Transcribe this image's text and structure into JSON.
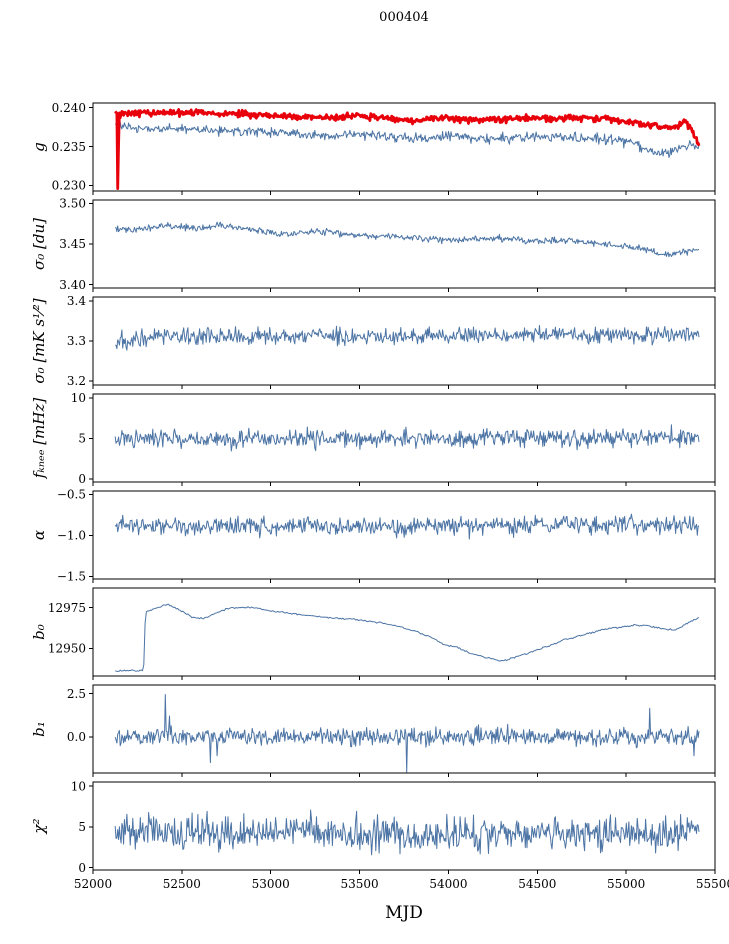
{
  "title": "000404",
  "colors": {
    "line_blue": "#4c74a4",
    "line_red": "#e8000b",
    "axis": "#000000",
    "background": "#ffffff"
  },
  "chart_data": {
    "type": "line",
    "title": "000404",
    "xlabel": "MJD",
    "x_range": [
      52000,
      55500
    ],
    "x_ticks": [
      52000,
      52500,
      53000,
      53500,
      54000,
      54500,
      55000,
      55500
    ],
    "x_tick_labels": [
      "52000",
      "52500",
      "53000",
      "53500",
      "54000",
      "54500",
      "55000",
      "55500"
    ],
    "x_data_range": [
      52125,
      55410
    ],
    "legend": "none",
    "grid": false,
    "subplots": [
      {
        "key": "g",
        "ylabel": "g",
        "ylim": [
          0.2293,
          0.2406
        ],
        "yticks": [
          0.23,
          0.235,
          0.24
        ],
        "ytick_labels": [
          "0.230",
          "0.235",
          "0.240"
        ],
        "series": [
          {
            "name": "g-blue",
            "color": "#4c74a4",
            "width": 1,
            "points": 700,
            "noise": 0.0006,
            "trend": [
              [
                52125,
                0.2379
              ],
              [
                52250,
                0.2373
              ],
              [
                52600,
                0.2372
              ],
              [
                53000,
                0.2369
              ],
              [
                53300,
                0.2363
              ],
              [
                53500,
                0.2367
              ],
              [
                53800,
                0.236
              ],
              [
                54000,
                0.2364
              ],
              [
                54200,
                0.236
              ],
              [
                54400,
                0.2362
              ],
              [
                54600,
                0.2363
              ],
              [
                54800,
                0.2361
              ],
              [
                54950,
                0.2359
              ],
              [
                55050,
                0.2353
              ],
              [
                55150,
                0.2344
              ],
              [
                55230,
                0.2341
              ],
              [
                55300,
                0.2349
              ],
              [
                55360,
                0.2353
              ],
              [
                55410,
                0.2349
              ]
            ]
          },
          {
            "name": "g-red",
            "color": "#e8000b",
            "width": 2.8,
            "points": 700,
            "noise": 0.0004,
            "trend": [
              [
                52125,
                0.2392
              ],
              [
                52300,
                0.2394
              ],
              [
                52700,
                0.2393
              ],
              [
                53000,
                0.239
              ],
              [
                53300,
                0.2387
              ],
              [
                53500,
                0.239
              ],
              [
                53650,
                0.2387
              ],
              [
                53800,
                0.2384
              ],
              [
                54000,
                0.2387
              ],
              [
                54150,
                0.2384
              ],
              [
                54300,
                0.2385
              ],
              [
                54450,
                0.2387
              ],
              [
                54600,
                0.2386
              ],
              [
                54750,
                0.2387
              ],
              [
                54900,
                0.2385
              ],
              [
                55000,
                0.2383
              ],
              [
                55100,
                0.2378
              ],
              [
                55200,
                0.2376
              ],
              [
                55270,
                0.2375
              ],
              [
                55330,
                0.2382
              ],
              [
                55370,
                0.2372
              ],
              [
                55410,
                0.2352
              ]
            ],
            "spikes": [
              [
                52138,
                0.2296
              ],
              [
                52146,
                0.2355
              ]
            ]
          }
        ]
      },
      {
        "key": "sigma0-du",
        "ylabel": "σ₀ [du]",
        "ylim": [
          3.396,
          3.504
        ],
        "yticks": [
          3.4,
          3.45,
          3.5
        ],
        "ytick_labels": [
          "3.40",
          "3.45",
          "3.50"
        ],
        "series": [
          {
            "name": "sigma0-du-blue",
            "color": "#4c74a4",
            "width": 1,
            "points": 700,
            "noise": 0.004,
            "trend": [
              [
                52125,
                3.47
              ],
              [
                52200,
                3.467
              ],
              [
                52300,
                3.47
              ],
              [
                52450,
                3.472
              ],
              [
                52600,
                3.469
              ],
              [
                52700,
                3.473
              ],
              [
                52800,
                3.47
              ],
              [
                52950,
                3.466
              ],
              [
                53100,
                3.462
              ],
              [
                53250,
                3.466
              ],
              [
                53400,
                3.462
              ],
              [
                53550,
                3.46
              ],
              [
                53700,
                3.459
              ],
              [
                53850,
                3.457
              ],
              [
                54000,
                3.455
              ],
              [
                54150,
                3.456
              ],
              [
                54300,
                3.457
              ],
              [
                54450,
                3.453
              ],
              [
                54600,
                3.454
              ],
              [
                54750,
                3.453
              ],
              [
                54900,
                3.449
              ],
              [
                55000,
                3.447
              ],
              [
                55100,
                3.444
              ],
              [
                55180,
                3.437
              ],
              [
                55260,
                3.437
              ],
              [
                55330,
                3.441
              ],
              [
                55410,
                3.443
              ]
            ]
          }
        ]
      },
      {
        "key": "sigma0-mk",
        "ylabel": "σ₀ [mK s¹⁄²]",
        "ylim": [
          3.19,
          3.41
        ],
        "yticks": [
          3.2,
          3.3,
          3.4
        ],
        "ytick_labels": [
          "3.2",
          "3.3",
          "3.4"
        ],
        "series": [
          {
            "name": "sigma0-mk-blue",
            "color": "#4c74a4",
            "width": 1,
            "points": 700,
            "noise": 0.02,
            "trend": [
              [
                52125,
                3.302
              ],
              [
                52400,
                3.31
              ],
              [
                52700,
                3.312
              ],
              [
                53000,
                3.31
              ],
              [
                53300,
                3.312
              ],
              [
                53600,
                3.31
              ],
              [
                53900,
                3.312
              ],
              [
                54200,
                3.313
              ],
              [
                54500,
                3.314
              ],
              [
                54800,
                3.314
              ],
              [
                55100,
                3.316
              ],
              [
                55410,
                3.318
              ]
            ]
          }
        ]
      },
      {
        "key": "fknee",
        "ylabel": "fₖₙₑₑ [mHz]",
        "ylim": [
          -0.4,
          10.5
        ],
        "yticks": [
          0,
          5,
          10
        ],
        "ytick_labels": [
          "0",
          "5",
          "10"
        ],
        "series": [
          {
            "name": "fknee-blue",
            "color": "#4c74a4",
            "width": 1,
            "points": 700,
            "noise": 1.15,
            "trend": [
              [
                52125,
                5.0
              ],
              [
                53000,
                4.9
              ],
              [
                54000,
                5.0
              ],
              [
                55410,
                5.1
              ]
            ]
          }
        ]
      },
      {
        "key": "alpha",
        "ylabel": "α",
        "ylim": [
          -1.53,
          -0.46
        ],
        "yticks": [
          -1.5,
          -1.0,
          -0.5
        ],
        "ytick_labels": [
          "−1.5",
          "−1.0",
          "−0.5"
        ],
        "series": [
          {
            "name": "alpha-blue",
            "color": "#4c74a4",
            "width": 1,
            "points": 700,
            "noise": 0.11,
            "trend": [
              [
                52125,
                -0.88
              ],
              [
                53500,
                -0.89
              ],
              [
                54500,
                -0.87
              ],
              [
                55410,
                -0.87
              ]
            ]
          }
        ]
      },
      {
        "key": "b0",
        "ylabel": "b₀",
        "ylim": [
          12933,
          12987
        ],
        "yticks": [
          12950,
          12975
        ],
        "ytick_labels": [
          "12950",
          "12975"
        ],
        "series": [
          {
            "name": "b0-blue",
            "color": "#4c74a4",
            "width": 1,
            "points": 450,
            "noise": 0.55,
            "trend": [
              [
                52125,
                12936
              ],
              [
                52285,
                12936.5
              ],
              [
                52295,
                12972
              ],
              [
                52340,
                12974
              ],
              [
                52420,
                12977
              ],
              [
                52480,
                12974
              ],
              [
                52560,
                12969
              ],
              [
                52620,
                12968
              ],
              [
                52700,
                12972
              ],
              [
                52780,
                12975
              ],
              [
                52900,
                12975
              ],
              [
                53000,
                12973
              ],
              [
                53150,
                12971
              ],
              [
                53300,
                12969
              ],
              [
                53450,
                12968
              ],
              [
                53600,
                12966
              ],
              [
                53700,
                12964
              ],
              [
                53800,
                12961
              ],
              [
                53900,
                12957
              ],
              [
                53980,
                12952
              ],
              [
                54040,
                12951
              ],
              [
                54080,
                12949
              ],
              [
                54150,
                12946
              ],
              [
                54220,
                12944
              ],
              [
                54300,
                12942
              ],
              [
                54360,
                12944
              ],
              [
                54450,
                12947
              ],
              [
                54550,
                12951
              ],
              [
                54650,
                12955
              ],
              [
                54750,
                12958
              ],
              [
                54850,
                12961
              ],
              [
                54950,
                12963
              ],
              [
                55050,
                12964
              ],
              [
                55120,
                12964
              ],
              [
                55200,
                12962
              ],
              [
                55280,
                12961
              ],
              [
                55320,
                12964
              ],
              [
                55410,
                12969
              ]
            ]
          }
        ]
      },
      {
        "key": "b1",
        "ylabel": "b₁",
        "ylim": [
          -2.1,
          3.0
        ],
        "yticks": [
          0.0,
          2.5
        ],
        "ytick_labels": [
          "0.0",
          "2.5"
        ],
        "series": [
          {
            "name": "b1-blue",
            "color": "#4c74a4",
            "width": 1,
            "points": 700,
            "noise": 0.5,
            "trend": [
              [
                52125,
                0.05
              ],
              [
                53500,
                0.0
              ],
              [
                54500,
                0.02
              ],
              [
                55410,
                0.0
              ]
            ],
            "spikes": [
              [
                52405,
                2.45
              ],
              [
                52430,
                1.2
              ],
              [
                52660,
                -1.5
              ],
              [
                52700,
                -1.1
              ],
              [
                53763,
                -2.05
              ],
              [
                55135,
                1.65
              ],
              [
                55380,
                -1.1
              ]
            ]
          }
        ]
      },
      {
        "key": "chi2",
        "ylabel": "χ²",
        "ylim": [
          -0.3,
          10.5
        ],
        "yticks": [
          0,
          5,
          10
        ],
        "ytick_labels": [
          "0",
          "5",
          "10"
        ],
        "series": [
          {
            "name": "chi2-blue",
            "color": "#4c74a4",
            "width": 1,
            "points": 700,
            "noise": 2.0,
            "trend": [
              [
                52125,
                4.1
              ],
              [
                52400,
                4.4
              ],
              [
                52700,
                4.0
              ],
              [
                53000,
                4.3
              ],
              [
                53200,
                4.6
              ],
              [
                53400,
                4.0
              ],
              [
                53700,
                4.2
              ],
              [
                54000,
                3.9
              ],
              [
                54300,
                4.4
              ],
              [
                54600,
                4.1
              ],
              [
                54900,
                4.4
              ],
              [
                55150,
                4.0
              ],
              [
                55410,
                4.3
              ]
            ]
          }
        ]
      }
    ]
  }
}
